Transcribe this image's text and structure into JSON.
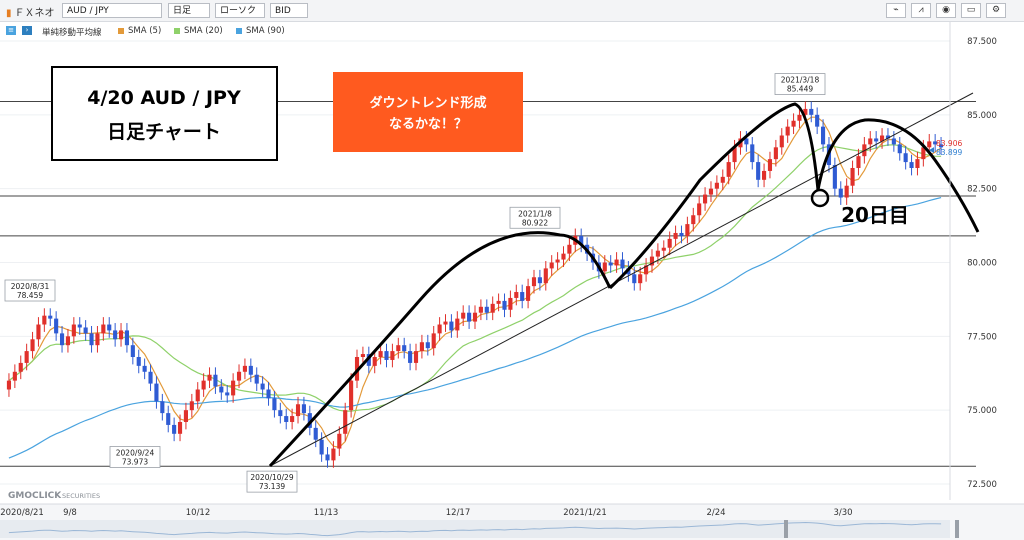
{
  "toolbar": {
    "brand": "ＦＸネオ",
    "symbol": "AUD / JPY",
    "timeframe": "日足",
    "chart_style": "ローソク",
    "price_type": "BID"
  },
  "legend": {
    "indicator": "単純移動平均線",
    "items": [
      {
        "label": "SMA (5)",
        "color": "#e39a3a"
      },
      {
        "label": "SMA (20)",
        "color": "#8fd16a"
      },
      {
        "label": "SMA (90)",
        "color": "#4aa3df"
      }
    ]
  },
  "watermark": {
    "brand": "GMOCLICK",
    "suffix": "SECURITIES"
  },
  "title_box": {
    "line1": "4/20  AUD / JPY",
    "line2": "日足チャート"
  },
  "callout": {
    "line1": "ダウントレンド形成",
    "line2": "なるかな！？",
    "bg": "#ff5a1f"
  },
  "day_label": "20日目",
  "current_price": {
    "red": "83.906",
    "blue": "83.899"
  },
  "chart_data": {
    "type": "candlestick",
    "y_range": [
      72.5,
      87.5
    ],
    "y_ticks": [
      "87.500",
      "85.000",
      "82.500",
      "80.000",
      "77.500",
      "75.000",
      "72.500"
    ],
    "x_ticks": [
      "2020/8/21",
      "9/8",
      "10/12",
      "11/13",
      "12/17",
      "2021/1/21",
      "2/24",
      "3/30"
    ],
    "horizontal_lines": [
      85.45,
      82.25,
      80.9,
      73.1
    ],
    "annotations": [
      {
        "date": "2020/8/31",
        "value": "78.459",
        "price": 78.459
      },
      {
        "date": "2020/9/24",
        "value": "73.973",
        "price": 73.973
      },
      {
        "date": "2020/10/29",
        "value": "73.139",
        "price": 73.139
      },
      {
        "date": "2021/1/8",
        "value": "80.922",
        "price": 80.922
      },
      {
        "date": "2021/3/18",
        "value": "85.449",
        "price": 85.449
      }
    ],
    "close": [
      76.0,
      76.3,
      76.6,
      77.0,
      77.4,
      77.9,
      78.2,
      78.1,
      77.6,
      77.2,
      77.5,
      77.9,
      77.8,
      77.6,
      77.2,
      77.6,
      77.9,
      77.7,
      77.4,
      77.7,
      77.2,
      76.8,
      76.5,
      76.3,
      75.9,
      75.3,
      74.9,
      74.5,
      74.2,
      74.6,
      75.0,
      75.3,
      75.7,
      76.0,
      76.2,
      75.8,
      75.6,
      75.5,
      76.0,
      76.3,
      76.5,
      76.2,
      75.9,
      75.7,
      75.4,
      75.0,
      74.8,
      74.6,
      74.8,
      75.2,
      74.9,
      74.4,
      74.0,
      73.5,
      73.3,
      73.7,
      74.2,
      75.0,
      76.0,
      76.8,
      76.9,
      76.5,
      76.8,
      77.0,
      76.7,
      77.0,
      77.2,
      77.0,
      76.6,
      77.0,
      77.3,
      77.1,
      77.6,
      77.9,
      78.0,
      77.7,
      78.1,
      78.3,
      78.0,
      78.3,
      78.5,
      78.3,
      78.6,
      78.7,
      78.4,
      78.8,
      79.0,
      78.7,
      79.2,
      79.5,
      79.3,
      79.8,
      80.0,
      80.1,
      80.3,
      80.6,
      80.9,
      80.6,
      80.3,
      80.0,
      79.7,
      80.0,
      79.9,
      80.1,
      79.8,
      79.6,
      79.3,
      79.6,
      79.9,
      80.2,
      80.4,
      80.5,
      80.8,
      81.0,
      80.9,
      81.3,
      81.6,
      82.0,
      82.3,
      82.5,
      82.7,
      82.9,
      83.4,
      83.9,
      84.2,
      84.0,
      83.4,
      82.8,
      83.1,
      83.5,
      83.9,
      84.3,
      84.6,
      84.8,
      85.0,
      85.2,
      85.0,
      84.6,
      84.0,
      83.3,
      82.5,
      82.2,
      82.6,
      83.2,
      83.6,
      84.0,
      84.2,
      84.1,
      84.3,
      84.2,
      84.0,
      83.7,
      83.4,
      83.2,
      83.5,
      83.9,
      84.1,
      84.0,
      83.9
    ]
  }
}
